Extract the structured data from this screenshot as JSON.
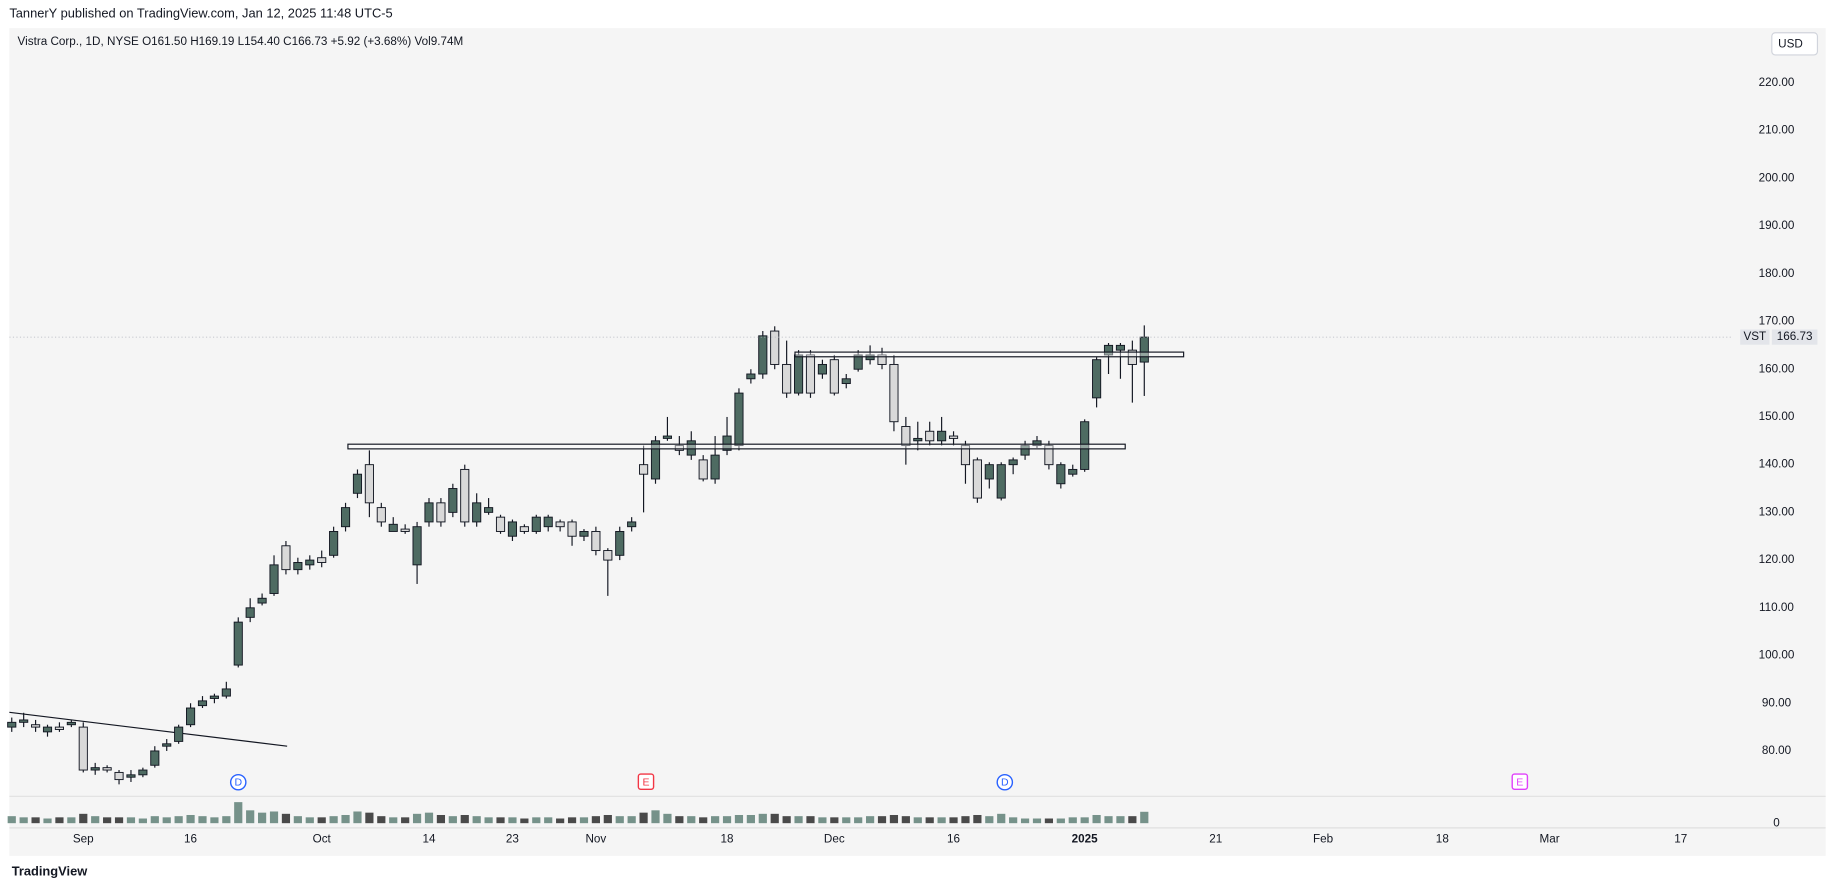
{
  "header": "TannerY published on TradingView.com, Jan 12, 2025 11:48 UTC-5",
  "footer": "TradingView",
  "chart_data": {
    "type": "candlestick",
    "legend": "Vistra Corp., 1D, NYSE  O161.50  H169.19  L154.40  C166.73  +5.92 (+3.68%)  Vol9.74M",
    "currency": "USD",
    "symbol": "VST",
    "up_color": "#4e6b62",
    "down_color": "#d9d9d9",
    "ohlc": [
      [
        85,
        87,
        84,
        86
      ],
      [
        86,
        88,
        85,
        86.5
      ],
      [
        85.5,
        86.5,
        84,
        85
      ],
      [
        84,
        85.5,
        83,
        85
      ],
      [
        85,
        86,
        84,
        84.5
      ],
      [
        85.5,
        86.5,
        85,
        86
      ],
      [
        85,
        86,
        75.5,
        76
      ],
      [
        76,
        77.5,
        75,
        76.5
      ],
      [
        76.5,
        77,
        75.5,
        76
      ],
      [
        75.5,
        76,
        73,
        74
      ],
      [
        74.5,
        76,
        73.5,
        75
      ],
      [
        75,
        76.5,
        74.5,
        76
      ],
      [
        77,
        81,
        76.5,
        80
      ],
      [
        81,
        82.5,
        80,
        81.5
      ],
      [
        82,
        85.5,
        81.5,
        85
      ],
      [
        85.5,
        90,
        85,
        89
      ],
      [
        89.5,
        91.5,
        89,
        90.5
      ],
      [
        91,
        92,
        90,
        91.5
      ],
      [
        91.5,
        94.5,
        91,
        93
      ],
      [
        98,
        108,
        97.5,
        107
      ],
      [
        108,
        112,
        107,
        110
      ],
      [
        111,
        113,
        110.5,
        112
      ],
      [
        113,
        121,
        112.5,
        119
      ],
      [
        123,
        124,
        117,
        118
      ],
      [
        118,
        120.5,
        117,
        119.5
      ],
      [
        119,
        121,
        118,
        120
      ],
      [
        120.5,
        122,
        118.5,
        119.5
      ],
      [
        121,
        127,
        120.5,
        126
      ],
      [
        127,
        132,
        126,
        131
      ],
      [
        134,
        139,
        133,
        138
      ],
      [
        140,
        143,
        129,
        132
      ],
      [
        131,
        132,
        127,
        128
      ],
      [
        126,
        129,
        126,
        127.5
      ],
      [
        126.5,
        127.5,
        125.5,
        126
      ],
      [
        119,
        128,
        115,
        127
      ],
      [
        128,
        133,
        127,
        132
      ],
      [
        132,
        133,
        127,
        128
      ],
      [
        130,
        136,
        129,
        135
      ],
      [
        139,
        140,
        127,
        128
      ],
      [
        128,
        134,
        127,
        132
      ],
      [
        130,
        133,
        129.5,
        131
      ],
      [
        129,
        129.5,
        125.5,
        126
      ],
      [
        125,
        128.5,
        124,
        128
      ],
      [
        127,
        127.5,
        125.5,
        126
      ],
      [
        126,
        129.5,
        125.5,
        129
      ],
      [
        127,
        129.5,
        126,
        129
      ],
      [
        128,
        128.5,
        126,
        127
      ],
      [
        128,
        128.5,
        123,
        125
      ],
      [
        125,
        126.5,
        124,
        126
      ],
      [
        126,
        127,
        121,
        122
      ],
      [
        122,
        122.5,
        112.5,
        120
      ],
      [
        121,
        127,
        120,
        126
      ],
      [
        127,
        129,
        126,
        128
      ],
      [
        140,
        144,
        130,
        138
      ],
      [
        137,
        146,
        136,
        145
      ],
      [
        145.5,
        150,
        145,
        146
      ],
      [
        144,
        146,
        142,
        143
      ],
      [
        142,
        147,
        141,
        145
      ],
      [
        141,
        142,
        136.5,
        137
      ],
      [
        137,
        146,
        136,
        142
      ],
      [
        143,
        150,
        142,
        146
      ],
      [
        144,
        156,
        143,
        155
      ],
      [
        158,
        160,
        157,
        159
      ],
      [
        159,
        168,
        158,
        167
      ],
      [
        168,
        169,
        160,
        161
      ],
      [
        161,
        166,
        154,
        155
      ],
      [
        155,
        164,
        154.5,
        163
      ],
      [
        163,
        164,
        154,
        155
      ],
      [
        159,
        162,
        158,
        161
      ],
      [
        162,
        163,
        154.5,
        155
      ],
      [
        157,
        159,
        156,
        158
      ],
      [
        160,
        164,
        159.5,
        163
      ],
      [
        162,
        165,
        161,
        163
      ],
      [
        163,
        164.5,
        160,
        161
      ],
      [
        161,
        163,
        147,
        149
      ],
      [
        148,
        150,
        140,
        144
      ],
      [
        145,
        149,
        143,
        145.5
      ],
      [
        147,
        149,
        144,
        145
      ],
      [
        145,
        150,
        144,
        147
      ],
      [
        146,
        147,
        144,
        145.5
      ],
      [
        144,
        145,
        136,
        140
      ],
      [
        141,
        141.5,
        132,
        133
      ],
      [
        137,
        140.5,
        135,
        140
      ],
      [
        133,
        140.5,
        132.5,
        140
      ],
      [
        140,
        141.5,
        138,
        141
      ],
      [
        142,
        145,
        141,
        144
      ],
      [
        144,
        146,
        143.5,
        145
      ],
      [
        144,
        145,
        139,
        140
      ],
      [
        136,
        140.5,
        135,
        140
      ],
      [
        138,
        140,
        137.5,
        139
      ],
      [
        139,
        149.5,
        138.5,
        149
      ],
      [
        154,
        162.5,
        152,
        162
      ],
      [
        163,
        165.5,
        159,
        165
      ],
      [
        164,
        165.5,
        158,
        165
      ],
      [
        164,
        166,
        153,
        161
      ],
      [
        161.5,
        169.19,
        154.4,
        166.73
      ]
    ],
    "volume": [
      6,
      5,
      5,
      4,
      5,
      5,
      8,
      6,
      5,
      5,
      5,
      4,
      6,
      5,
      6,
      7,
      6,
      5,
      6,
      18,
      11,
      9,
      10,
      8,
      6,
      5,
      5,
      6,
      7,
      10,
      9,
      6,
      5,
      5,
      8,
      9,
      7,
      6,
      7,
      6,
      5,
      5,
      5,
      4,
      5,
      5,
      4,
      5,
      5,
      6,
      7,
      6,
      6,
      9,
      11,
      8,
      6,
      6,
      5,
      6,
      6,
      7,
      7,
      8,
      8,
      6,
      6,
      6,
      5,
      5,
      5,
      5,
      6,
      6,
      7,
      6,
      5,
      5,
      5,
      5,
      6,
      7,
      6,
      8,
      5,
      4,
      4,
      4,
      4,
      5,
      5,
      7,
      6,
      6,
      6,
      9.74
    ],
    "volume_ylim": [
      0,
      24
    ],
    "volume_yticks": [
      0
    ],
    "xlim": [
      -0.2,
      144.3
    ],
    "xticks": [
      {
        "value": 6,
        "label": "Sep"
      },
      {
        "value": 15,
        "label": "16"
      },
      {
        "value": 26,
        "label": "Oct"
      },
      {
        "value": 35,
        "label": "14"
      },
      {
        "value": 42,
        "label": "23"
      },
      {
        "value": 49,
        "label": "Nov"
      },
      {
        "value": 60,
        "label": "18"
      },
      {
        "value": 69,
        "label": "Dec"
      },
      {
        "value": 79,
        "label": "16"
      },
      {
        "value": 90,
        "label": "2025"
      },
      {
        "value": 101,
        "label": "21"
      },
      {
        "value": 110,
        "label": "Feb"
      },
      {
        "value": 120,
        "label": "18"
      },
      {
        "value": 129,
        "label": "Mar"
      },
      {
        "value": 140,
        "label": "17"
      }
    ],
    "ylim": [
      70.5,
      231.5
    ],
    "yticks": [
      {
        "value": 80,
        "label": "80.00"
      },
      {
        "value": 90,
        "label": "90.00"
      },
      {
        "value": 100,
        "label": "100.00"
      },
      {
        "value": 110,
        "label": "110.00"
      },
      {
        "value": 120,
        "label": "120.00"
      },
      {
        "value": 130,
        "label": "130.00"
      },
      {
        "value": 140,
        "label": "140.00"
      },
      {
        "value": 150,
        "label": "150.00"
      },
      {
        "value": 160,
        "label": "160.00"
      },
      {
        "value": 170,
        "label": "170.00"
      },
      {
        "value": 180,
        "label": "180.00"
      },
      {
        "value": 190,
        "label": "190.00"
      },
      {
        "value": 200,
        "label": "200.00"
      },
      {
        "value": 210,
        "label": "210.00"
      },
      {
        "value": 220,
        "label": "220.00"
      }
    ],
    "levels": [
      {
        "price": 163.1,
        "from": 65.7,
        "to": 98.3
      },
      {
        "price": 143.8,
        "from": 28.2,
        "to": 93.4
      }
    ],
    "trendline": {
      "from": [
        -0.2,
        88.1
      ],
      "to": [
        23.1,
        81
      ]
    },
    "events": [
      {
        "label": "D",
        "x": 19,
        "color": "#2962ff"
      },
      {
        "label": "E",
        "x": 53.2,
        "color": "#f23645"
      },
      {
        "label": "D",
        "x": 83.3,
        "color": "#2962ff"
      },
      {
        "label": "E",
        "x": 126.5,
        "color": "#e040fb"
      }
    ]
  }
}
